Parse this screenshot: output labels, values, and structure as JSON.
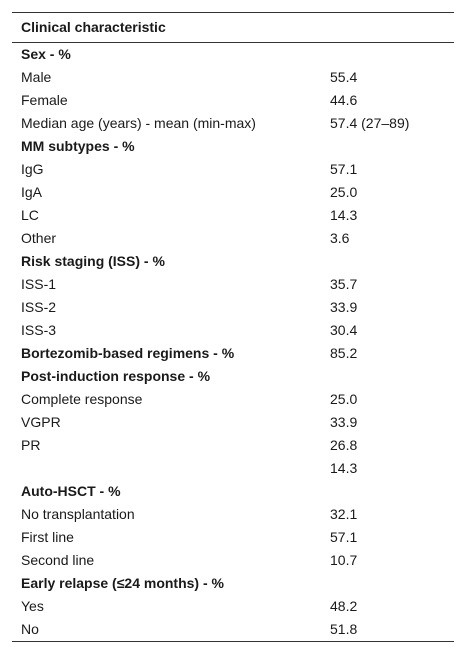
{
  "table": {
    "header": "Clinical characteristic",
    "groups": [
      {
        "title": "Sex - %",
        "rows": [
          [
            "Male",
            "55.4"
          ],
          [
            "Female",
            "44.6"
          ],
          [
            "Median age (years) - mean (min-max)",
            "57.4 (27–89)"
          ]
        ]
      },
      {
        "title": "MM subtypes - %",
        "rows": [
          [
            "IgG",
            "57.1"
          ],
          [
            "IgA",
            "25.0"
          ],
          [
            "LC",
            "14.3"
          ],
          [
            "Other",
            "3.6"
          ]
        ]
      },
      {
        "title": "Risk staging (ISS) - %",
        "rows": [
          [
            "ISS-1",
            "35.7"
          ],
          [
            "ISS-2",
            "33.9"
          ],
          [
            "ISS-3",
            "30.4"
          ]
        ]
      },
      {
        "title": "Bortezomib-based regimens - %",
        "value": "85.2"
      },
      {
        "title": "Post-induction response - %",
        "rows": [
          [
            "Complete response",
            "25.0"
          ],
          [
            "VGPR",
            "33.9"
          ],
          [
            "PR",
            "26.8"
          ],
          [
            null,
            "14.3"
          ]
        ]
      },
      {
        "title": "Auto-HSCT - %",
        "rows": [
          [
            "No transplantation",
            "32.1"
          ],
          [
            "First line",
            "57.1"
          ],
          [
            "Second line",
            "10.7"
          ]
        ]
      },
      {
        "title": "Early relapse (≤24 months) - %",
        "rows": [
          [
            "Yes",
            "48.2"
          ],
          [
            "No",
            "51.8"
          ]
        ]
      }
    ]
  }
}
